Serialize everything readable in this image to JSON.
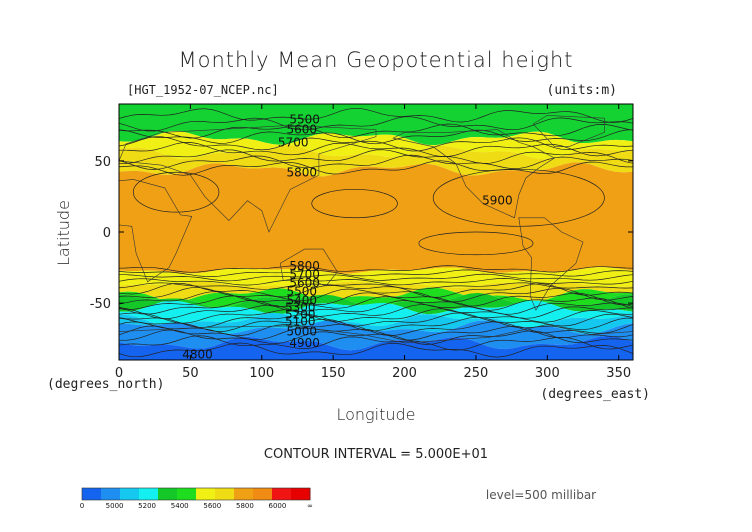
{
  "chart_data": {
    "type": "heatmap",
    "title": "Monthly Mean Geopotential height",
    "file_label": "[HGT_1952-07_NCEP.nc]",
    "units_label": "(units:m)",
    "xlabel": "Longitude",
    "ylabel": "Latitude",
    "x_units": "(degrees_east)",
    "y_units": "(degrees_north)",
    "xlim": [
      0,
      360
    ],
    "ylim": [
      -90,
      90
    ],
    "x_ticks": [
      "0",
      "50",
      "100",
      "150",
      "200",
      "250",
      "300",
      "350"
    ],
    "y_ticks": [
      "50",
      "0",
      "-50"
    ],
    "contour_interval": "CONTOUR INTERVAL = 5.000E+01",
    "level": "level=500 millibar",
    "contour_labels": [
      {
        "text": "5500",
        "lon": 130,
        "lat": 79
      },
      {
        "text": "5600",
        "lon": 128,
        "lat": 72
      },
      {
        "text": "5700",
        "lon": 122,
        "lat": 63
      },
      {
        "text": "5800",
        "lon": 128,
        "lat": 42
      },
      {
        "text": "5900",
        "lon": 265,
        "lat": 22
      },
      {
        "text": "5800",
        "lon": 130,
        "lat": -24
      },
      {
        "text": "5700",
        "lon": 130,
        "lat": -30
      },
      {
        "text": "5600",
        "lon": 130,
        "lat": -36
      },
      {
        "text": "5500",
        "lon": 128,
        "lat": -42
      },
      {
        "text": "5400",
        "lon": 128,
        "lat": -48
      },
      {
        "text": "5300",
        "lon": 127,
        "lat": -53
      },
      {
        "text": "5200",
        "lon": 127,
        "lat": -58
      },
      {
        "text": "5100",
        "lon": 127,
        "lat": -63
      },
      {
        "text": "5000",
        "lon": 128,
        "lat": -70
      },
      {
        "text": "4900",
        "lon": 130,
        "lat": -78
      },
      {
        "text": "4800",
        "lon": 55,
        "lat": -86
      }
    ],
    "colorbar": {
      "labels": [
        "0",
        "5000",
        "5200",
        "5400",
        "5600",
        "5800",
        "6000",
        "∞"
      ],
      "colors": [
        "#1464f0",
        "#1e8ef0",
        "#14c8f0",
        "#14f0f0",
        "#14c828",
        "#1edc1e",
        "#f0f014",
        "#f0dc14",
        "#f0a014",
        "#f08c14",
        "#f01414",
        "#e60000"
      ]
    },
    "bands": [
      {
        "lat_top": 90,
        "lat_bot": 66,
        "color": "#14d232"
      },
      {
        "lat_top": 66,
        "lat_bot": 56,
        "color": "#f0f014"
      },
      {
        "lat_top": 56,
        "lat_bot": 44,
        "color": "#f0dc14"
      },
      {
        "lat_top": 44,
        "lat_bot": -27,
        "color": "#f0a014"
      },
      {
        "lat_top": -27,
        "lat_bot": -37,
        "color": "#f0f014"
      },
      {
        "lat_top": -37,
        "lat_bot": -44,
        "color": "#f0dc14"
      },
      {
        "lat_top": -44,
        "lat_bot": -48,
        "color": "#1edc1e"
      },
      {
        "lat_top": -48,
        "lat_bot": -53,
        "color": "#14c828"
      },
      {
        "lat_top": -53,
        "lat_bot": -62,
        "color": "#14f0f0"
      },
      {
        "lat_top": -62,
        "lat_bot": -67,
        "color": "#14c8f0"
      },
      {
        "lat_top": -67,
        "lat_bot": -78,
        "color": "#1e8ef0"
      },
      {
        "lat_top": -78,
        "lat_bot": -90,
        "color": "#1464f0"
      }
    ]
  }
}
